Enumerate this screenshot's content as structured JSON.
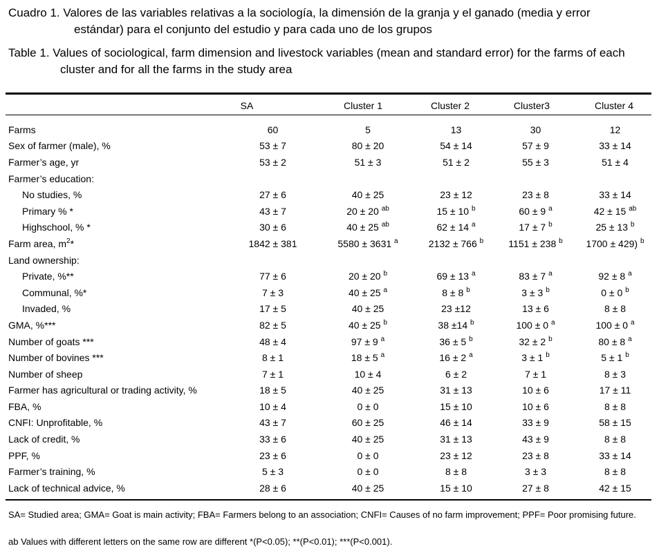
{
  "caption_es": {
    "line1": "Cuadro 1. Valores de las variables relativas a la sociología, la dimensión de la granja y el ganado (media y error",
    "line2": "estándar) para el conjunto del estudio y para cada uno de los grupos"
  },
  "caption_en": {
    "line1": "Table 1. Values of sociological, farm dimension and livestock variables (mean and standard error) for the farms of each",
    "line2": "cluster and for all the farms in the study area"
  },
  "headers": [
    "SA",
    "Cluster  1",
    "Cluster  2",
    "Cluster3",
    "Cluster  4"
  ],
  "rows": [
    {
      "label": "Farms",
      "cells": [
        [
          "60",
          ""
        ],
        [
          "5",
          ""
        ],
        [
          "13",
          ""
        ],
        [
          "30",
          ""
        ],
        [
          "12",
          ""
        ]
      ]
    },
    {
      "label": "Sex of farmer (male), %",
      "cells": [
        [
          "53 ± 7",
          ""
        ],
        [
          "80 ± 20",
          ""
        ],
        [
          "54 ± 14",
          ""
        ],
        [
          "57 ± 9",
          ""
        ],
        [
          "33 ± 14",
          ""
        ]
      ]
    },
    {
      "label": "Farmer’s age, yr",
      "cells": [
        [
          "53 ± 2",
          ""
        ],
        [
          "51 ± 3",
          ""
        ],
        [
          "51 ± 2",
          ""
        ],
        [
          "55 ± 3",
          ""
        ],
        [
          "51 ± 4",
          ""
        ]
      ]
    },
    {
      "label": "Farmer’s education:",
      "cells": [
        [
          "",
          ""
        ],
        [
          "",
          ""
        ],
        [
          "",
          ""
        ],
        [
          "",
          ""
        ],
        [
          "",
          ""
        ]
      ]
    },
    {
      "label": "No studies, %",
      "sub": true,
      "cells": [
        [
          "27 ± 6",
          ""
        ],
        [
          "40 ± 25",
          ""
        ],
        [
          "23 ± 12",
          ""
        ],
        [
          "23 ± 8",
          ""
        ],
        [
          "33 ± 14",
          ""
        ]
      ]
    },
    {
      "label": "Primary %  *",
      "sub": true,
      "cells": [
        [
          "43 ± 7",
          ""
        ],
        [
          "20 ± 20 ",
          "ab"
        ],
        [
          "15 ± 10 ",
          "b"
        ],
        [
          "60 ± 9 ",
          "a"
        ],
        [
          "42 ± 15 ",
          "ab"
        ]
      ]
    },
    {
      "label": "Highschool, %  *",
      "sub": true,
      "cells": [
        [
          "30 ± 6",
          ""
        ],
        [
          "40 ± 25 ",
          "ab"
        ],
        [
          "62 ± 14 ",
          "a"
        ],
        [
          "17 ± 7 ",
          "b"
        ],
        [
          "25 ± 13 ",
          "b"
        ]
      ]
    },
    {
      "label": "Farm area, m",
      "label_sup": "2",
      "label_tail": "*",
      "cells": [
        [
          "1842 ± 381",
          ""
        ],
        [
          "5580 ± 3631 ",
          "a"
        ],
        [
          "2132 ± 766 ",
          "b"
        ],
        [
          "1151 ± 238 ",
          "b"
        ],
        [
          "1700 ± 429) ",
          "b"
        ]
      ]
    },
    {
      "label": "Land ownership:",
      "cells": [
        [
          "",
          ""
        ],
        [
          "",
          ""
        ],
        [
          "",
          ""
        ],
        [
          "",
          ""
        ],
        [
          "",
          ""
        ]
      ]
    },
    {
      "label": "Private, %**",
      "sub": true,
      "cells": [
        [
          "77 ± 6",
          ""
        ],
        [
          "20 ± 20 ",
          "b"
        ],
        [
          "69 ± 13 ",
          "a"
        ],
        [
          "83 ± 7 ",
          "a"
        ],
        [
          "92 ± 8 ",
          "a"
        ]
      ]
    },
    {
      "label": "Communal, %*",
      "sub": true,
      "cells": [
        [
          "7 ± 3",
          ""
        ],
        [
          "40 ± 25 ",
          "a"
        ],
        [
          "8 ± 8 ",
          "b"
        ],
        [
          "3 ± 3 ",
          "b"
        ],
        [
          "0 ± 0 ",
          "b"
        ]
      ]
    },
    {
      "label": "Invaded, %",
      "sub": true,
      "cells": [
        [
          "17 ± 5",
          ""
        ],
        [
          "40 ± 25",
          ""
        ],
        [
          "23 ±12",
          ""
        ],
        [
          "13 ± 6",
          ""
        ],
        [
          "8 ± 8",
          ""
        ]
      ]
    },
    {
      "label": "GMA, %***",
      "cells": [
        [
          "82 ± 5",
          ""
        ],
        [
          "40 ± 25 ",
          "b"
        ],
        [
          "38 ±14 ",
          "b"
        ],
        [
          "100 ± 0 ",
          "a"
        ],
        [
          "100 ± 0 ",
          "a"
        ]
      ]
    },
    {
      "label": "Number of goats ***",
      "cells": [
        [
          "48 ± 4",
          ""
        ],
        [
          "97 ± 9 ",
          "a"
        ],
        [
          "36 ± 5 ",
          "b"
        ],
        [
          "32 ± 2 ",
          "b"
        ],
        [
          "80 ± 8 ",
          "a"
        ]
      ]
    },
    {
      "label": "Number of bovines ***",
      "cells": [
        [
          "8 ± 1",
          ""
        ],
        [
          "18 ± 5 ",
          "a"
        ],
        [
          "16 ± 2 ",
          "a"
        ],
        [
          "3 ± 1 ",
          "b"
        ],
        [
          "5 ± 1 ",
          "b"
        ]
      ]
    },
    {
      "label": "Number of sheep",
      "cells": [
        [
          "7 ± 1",
          ""
        ],
        [
          "10 ± 4",
          ""
        ],
        [
          "6 ± 2",
          ""
        ],
        [
          "7 ± 1",
          ""
        ],
        [
          "8 ± 3",
          ""
        ]
      ]
    },
    {
      "label": "Farmer has agricultural or trading activity, %",
      "cells": [
        [
          "18 ± 5",
          ""
        ],
        [
          "40 ± 25",
          ""
        ],
        [
          "31 ± 13",
          ""
        ],
        [
          "10 ± 6",
          ""
        ],
        [
          "17 ± 11",
          ""
        ]
      ]
    },
    {
      "label": "FBA, %",
      "cells": [
        [
          "10 ± 4",
          ""
        ],
        [
          "0 ± 0",
          ""
        ],
        [
          "15 ± 10",
          ""
        ],
        [
          "10 ± 6",
          ""
        ],
        [
          "8 ± 8",
          ""
        ]
      ]
    },
    {
      "label": "CNFI: Unprofitable, %",
      "cells": [
        [
          "43 ± 7",
          ""
        ],
        [
          "60 ± 25",
          ""
        ],
        [
          "46 ± 14",
          ""
        ],
        [
          "33 ± 9",
          ""
        ],
        [
          "58 ± 15",
          ""
        ]
      ]
    },
    {
      "label": "Lack of credit, %",
      "cells": [
        [
          "33 ± 6",
          ""
        ],
        [
          "40 ± 25",
          ""
        ],
        [
          "31 ± 13",
          ""
        ],
        [
          "43 ± 9",
          ""
        ],
        [
          "8 ± 8",
          ""
        ]
      ]
    },
    {
      "label": "PPF, %",
      "cells": [
        [
          "23 ± 6",
          ""
        ],
        [
          "0 ± 0",
          ""
        ],
        [
          "23 ± 12",
          ""
        ],
        [
          "23 ± 8",
          ""
        ],
        [
          "33 ± 14",
          ""
        ]
      ]
    },
    {
      "label": "Farmer’s training, %",
      "cells": [
        [
          "5 ± 3",
          ""
        ],
        [
          "0 ± 0",
          ""
        ],
        [
          "8 ± 8",
          ""
        ],
        [
          "3 ± 3",
          ""
        ],
        [
          "8 ± 8",
          ""
        ]
      ]
    },
    {
      "label": "Lack of technical advice, %",
      "cells": [
        [
          "28 ± 6",
          ""
        ],
        [
          "40 ± 25",
          ""
        ],
        [
          "15 ± 10",
          ""
        ],
        [
          "27 ± 8",
          ""
        ],
        [
          "42 ± 15",
          ""
        ]
      ]
    }
  ],
  "footnotes": {
    "abbreviations": "SA= Studied area; GMA= Goat is main activity; FBA= Farmers belong to an association; CNFI= Causes of no farm improvement; PPF= Poor promising future.",
    "significance": "ab Values with different letters on the same row are different *(P<0.05); **(P<0.01); ***(P<0.001)."
  }
}
